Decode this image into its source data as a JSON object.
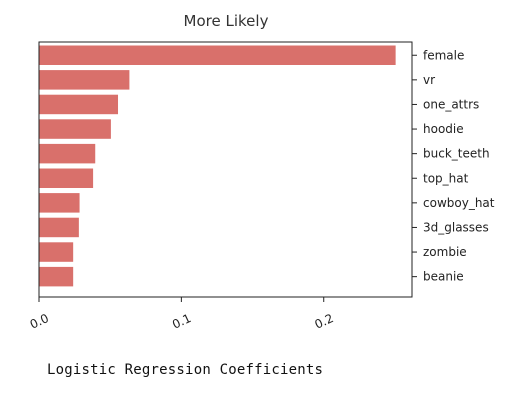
{
  "caption": "Logistic Regression Coefficients",
  "chart_data": {
    "type": "bar",
    "orientation": "horizontal",
    "title": "More Likely",
    "xlabel": "",
    "ylabel": "",
    "categories": [
      "female",
      "vr",
      "one_attrs",
      "hoodie",
      "buck_teeth",
      "top_hat",
      "cowboy_hat",
      "3d_glasses",
      "zombie",
      "beanie"
    ],
    "values": [
      0.2505,
      0.0635,
      0.0555,
      0.0505,
      0.0395,
      0.038,
      0.0285,
      0.028,
      0.024,
      0.024
    ],
    "xlim": [
      0.0,
      0.262
    ],
    "xticks": [
      0.0,
      0.1,
      0.2
    ],
    "xtick_labels": [
      "0.0",
      "0.1",
      "0.2"
    ],
    "ytick_position": "right",
    "xtick_rotation": "angled",
    "grid": false,
    "bar_color": "#d9706b"
  }
}
